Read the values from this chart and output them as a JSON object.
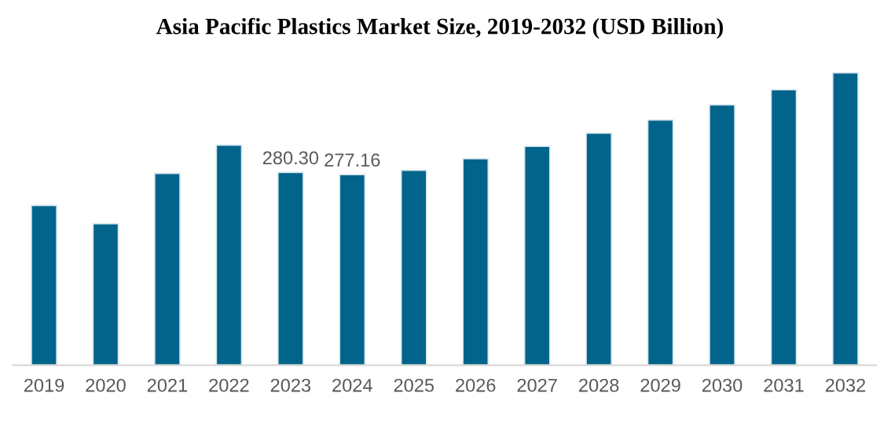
{
  "chart_data": {
    "type": "bar",
    "title": "Asia Pacific Plastics Market Size, 2019-2032 (USD Billion)",
    "categories": [
      "2019",
      "2020",
      "2021",
      "2022",
      "2023",
      "2024",
      "2025",
      "2026",
      "2027",
      "2028",
      "2029",
      "2030",
      "2031",
      "2032"
    ],
    "values": [
      232.3,
      205.7,
      278.9,
      320.0,
      280.3,
      277.16,
      283.5,
      300.2,
      318.4,
      337.4,
      356.6,
      378.6,
      400.7,
      425.2
    ],
    "value_labels": [
      null,
      null,
      null,
      null,
      "280.30",
      "277.16",
      null,
      null,
      null,
      null,
      null,
      null,
      null,
      null
    ],
    "color": "#02648a",
    "grid": false,
    "legend": false
  }
}
